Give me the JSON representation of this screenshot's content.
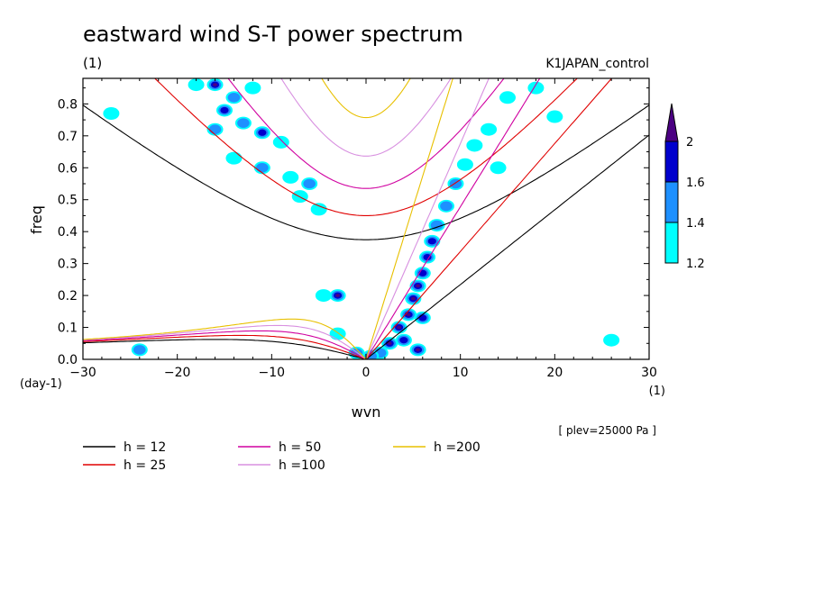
{
  "chart_data": {
    "type": "heatmap",
    "title": "eastward wind S-T power spectrum",
    "subtitle_left": "(1)",
    "subtitle_right": "K1JAPAN_control",
    "xlabel": "wvn",
    "ylabel": "freq",
    "x_unit": "(1)",
    "y_unit": "(day-1)",
    "xlim": [
      -30,
      30
    ],
    "ylim": [
      0,
      0.88
    ],
    "x_ticks": [
      -30,
      -20,
      -10,
      0,
      10,
      20,
      30
    ],
    "x_tick_labels": [
      "−30",
      "−20",
      "−10",
      "0",
      "10",
      "20",
      "30"
    ],
    "y_ticks": [
      0.0,
      0.1,
      0.2,
      0.3,
      0.4,
      0.5,
      0.6,
      0.7,
      0.8
    ],
    "y_tick_labels": [
      "0.0",
      "0.1",
      "0.2",
      "0.3",
      "0.4",
      "0.5",
      "0.6",
      "0.7",
      "0.8"
    ],
    "note": "[ plev=25000 Pa ]",
    "colorbar": {
      "levels": [
        1.2,
        1.4,
        1.6,
        2
      ],
      "level_labels": [
        "1.2",
        "1.4",
        "1.6",
        "2"
      ],
      "colors": [
        "#00ffff",
        "#1e90ff",
        "#0000cd",
        "#4b0082"
      ]
    },
    "dispersion_curves": [
      {
        "name": "h = 12",
        "h": 12,
        "color": "#000000"
      },
      {
        "name": "h = 25",
        "h": 25,
        "color": "#e00000"
      },
      {
        "name": "h = 50",
        "h": 50,
        "color": "#d000a0"
      },
      {
        "name": "h =100",
        "h": 100,
        "color": "#d890e0"
      },
      {
        "name": "h =200",
        "h": 200,
        "color": "#e8c000"
      }
    ],
    "blobs": [
      {
        "x": 2.5,
        "y": 0.05,
        "level": 4
      },
      {
        "x": 3.5,
        "y": 0.1,
        "level": 4
      },
      {
        "x": 4.5,
        "y": 0.14,
        "level": 4
      },
      {
        "x": 5,
        "y": 0.19,
        "level": 4
      },
      {
        "x": 5.5,
        "y": 0.23,
        "level": 4
      },
      {
        "x": 6,
        "y": 0.27,
        "level": 3
      },
      {
        "x": 6.5,
        "y": 0.32,
        "level": 3
      },
      {
        "x": 7,
        "y": 0.37,
        "level": 3
      },
      {
        "x": 7.5,
        "y": 0.42,
        "level": 2
      },
      {
        "x": 8.5,
        "y": 0.48,
        "level": 2
      },
      {
        "x": 9.5,
        "y": 0.55,
        "level": 2
      },
      {
        "x": 10.5,
        "y": 0.61,
        "level": 1
      },
      {
        "x": 11.5,
        "y": 0.67,
        "level": 1
      },
      {
        "x": 13,
        "y": 0.72,
        "level": 1
      },
      {
        "x": 5.5,
        "y": 0.03,
        "level": 4
      },
      {
        "x": 6,
        "y": 0.13,
        "level": 3
      },
      {
        "x": 4,
        "y": 0.06,
        "level": 3
      },
      {
        "x": 1.5,
        "y": 0.02,
        "level": 2
      },
      {
        "x": 0.5,
        "y": 0.01,
        "level": 2
      },
      {
        "x": -3,
        "y": 0.2,
        "level": 4
      },
      {
        "x": -4.5,
        "y": 0.2,
        "level": 1
      },
      {
        "x": -3,
        "y": 0.08,
        "level": 1
      },
      {
        "x": -1,
        "y": 0.02,
        "level": 2
      },
      {
        "x": -16,
        "y": 0.86,
        "level": 4
      },
      {
        "x": -14,
        "y": 0.82,
        "level": 2
      },
      {
        "x": -15,
        "y": 0.78,
        "level": 3
      },
      {
        "x": -13,
        "y": 0.74,
        "level": 2
      },
      {
        "x": -16,
        "y": 0.72,
        "level": 2
      },
      {
        "x": -11,
        "y": 0.71,
        "level": 3
      },
      {
        "x": -9,
        "y": 0.68,
        "level": 1
      },
      {
        "x": -14,
        "y": 0.63,
        "level": 1
      },
      {
        "x": -11,
        "y": 0.6,
        "level": 2
      },
      {
        "x": -8,
        "y": 0.57,
        "level": 1
      },
      {
        "x": -6,
        "y": 0.55,
        "level": 2
      },
      {
        "x": -7,
        "y": 0.51,
        "level": 1
      },
      {
        "x": -5,
        "y": 0.47,
        "level": 1
      },
      {
        "x": -12,
        "y": 0.85,
        "level": 1
      },
      {
        "x": -18,
        "y": 0.86,
        "level": 1
      },
      {
        "x": 15,
        "y": 0.82,
        "level": 1
      },
      {
        "x": 18,
        "y": 0.85,
        "level": 1
      },
      {
        "x": 20,
        "y": 0.76,
        "level": 1
      },
      {
        "x": 14,
        "y": 0.6,
        "level": 1
      },
      {
        "x": -27,
        "y": 0.77,
        "level": 1
      },
      {
        "x": -24,
        "y": 0.03,
        "level": 2
      },
      {
        "x": 26,
        "y": 0.06,
        "level": 1
      }
    ]
  }
}
